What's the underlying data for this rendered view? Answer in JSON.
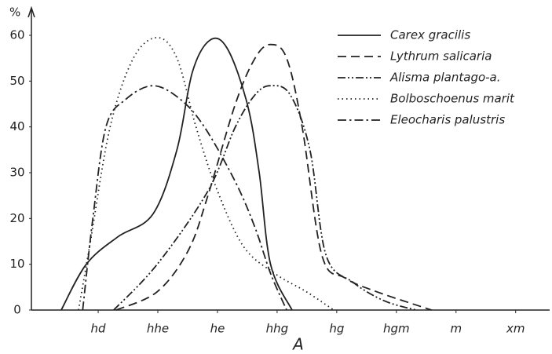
{
  "chart_data": {
    "type": "line",
    "ylabel": "%",
    "xlabel": "A",
    "xlim": [
      -1.12,
      7.57
    ],
    "ylim": [
      0,
      60
    ],
    "xticks": [
      {
        "value": 0,
        "label": "hd"
      },
      {
        "value": 1,
        "label": "hhe"
      },
      {
        "value": 2,
        "label": "he"
      },
      {
        "value": 3,
        "label": "hhg"
      },
      {
        "value": 4,
        "label": "hg"
      },
      {
        "value": 5,
        "label": "hgm"
      },
      {
        "value": 6,
        "label": "m"
      },
      {
        "value": 7,
        "label": "xm"
      }
    ],
    "yticks": [
      0,
      10,
      20,
      30,
      40,
      50,
      60
    ],
    "grid": false,
    "legend": "upper right",
    "series": [
      {
        "name": "Carex gracilis",
        "color": "#222",
        "style": "solid",
        "x": [
          -0.62,
          -0.2,
          0.33,
          0.92,
          1.32,
          1.58,
          1.88,
          2.17,
          2.5,
          2.7,
          2.89,
          3.25
        ],
        "values": [
          0,
          10,
          16,
          21,
          35,
          52,
          59,
          57,
          45,
          30,
          10,
          0
        ]
      },
      {
        "name": "Lythrum salicaria",
        "color": "#222",
        "style": "dashed",
        "x": [
          0.3,
          0.99,
          1.51,
          1.84,
          2.3,
          2.63,
          2.89,
          3.16,
          3.42,
          3.75,
          4.14,
          4.67,
          5.59
        ],
        "values": [
          0,
          4,
          13,
          25,
          45,
          55,
          58,
          55,
          40,
          12,
          7,
          4,
          0
        ]
      },
      {
        "name": "Alisma plantago-a.",
        "color": "#222",
        "style": "dash-dot-dot",
        "x": [
          0.26,
          0.99,
          1.84,
          2.3,
          2.63,
          2.89,
          3.22,
          3.55,
          3.82,
          4.28,
          4.8,
          5.33
        ],
        "values": [
          0,
          10,
          26,
          40,
          47,
          49,
          47,
          35,
          12,
          6,
          2,
          0
        ]
      },
      {
        "name": "Bolboschoenus marit",
        "color": "#222",
        "style": "dotted",
        "x": [
          -0.33,
          -0.13,
          0.2,
          0.59,
          0.99,
          1.32,
          1.64,
          1.97,
          2.43,
          2.96,
          3.49,
          3.95
        ],
        "values": [
          0,
          15,
          40,
          55,
          59.5,
          55,
          40,
          27,
          14,
          8,
          4,
          0
        ]
      },
      {
        "name": "Eleocharis palustris",
        "color": "#222",
        "style": "dash-dot",
        "x": [
          -0.26,
          -0.09,
          0.13,
          0.46,
          0.92,
          1.38,
          1.78,
          2.3,
          2.63,
          2.89,
          3.16
        ],
        "values": [
          0,
          20,
          40,
          46,
          49,
          46,
          40,
          28,
          18,
          8,
          0
        ]
      }
    ]
  }
}
